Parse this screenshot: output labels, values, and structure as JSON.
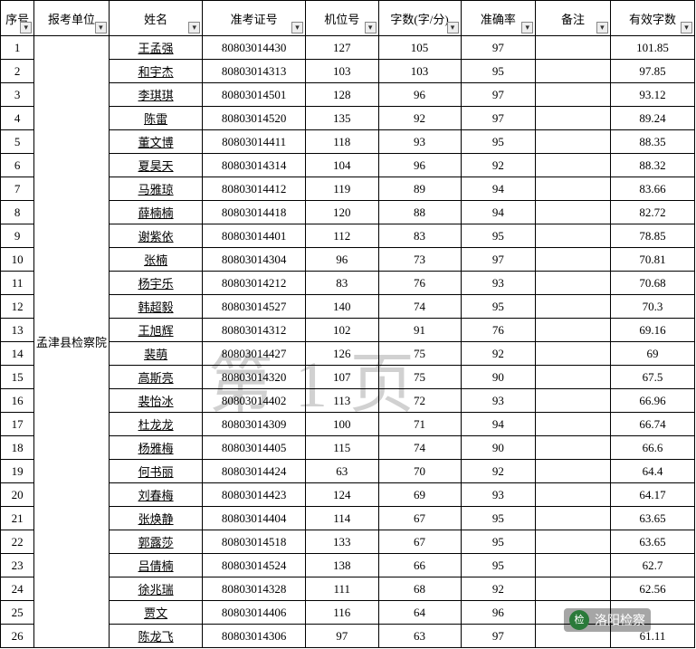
{
  "headers": {
    "seq": "序号",
    "unit": "报考单位",
    "name": "姓名",
    "exam": "准考证号",
    "machine": "机位号",
    "cpm": "字数(字/分)",
    "accuracy": "准确率",
    "note": "备注",
    "effective": "有效字数"
  },
  "unit_name": "孟津县检察院",
  "watermark": "第1页",
  "footer_text": "洛阳检察",
  "footer_logo": "检",
  "rows": [
    {
      "seq": "1",
      "name": "王孟强",
      "exam": "80803014430",
      "machine": "127",
      "cpm": "105",
      "acc": "97",
      "note": "",
      "eff": "101.85"
    },
    {
      "seq": "2",
      "name": "和宇杰",
      "exam": "80803014313",
      "machine": "103",
      "cpm": "103",
      "acc": "95",
      "note": "",
      "eff": "97.85"
    },
    {
      "seq": "3",
      "name": "李琪琪",
      "exam": "80803014501",
      "machine": "128",
      "cpm": "96",
      "acc": "97",
      "note": "",
      "eff": "93.12"
    },
    {
      "seq": "4",
      "name": "陈雷",
      "exam": "80803014520",
      "machine": "135",
      "cpm": "92",
      "acc": "97",
      "note": "",
      "eff": "89.24"
    },
    {
      "seq": "5",
      "name": "董文博",
      "exam": "80803014411",
      "machine": "118",
      "cpm": "93",
      "acc": "95",
      "note": "",
      "eff": "88.35"
    },
    {
      "seq": "6",
      "name": "夏昊天",
      "exam": "80803014314",
      "machine": "104",
      "cpm": "96",
      "acc": "92",
      "note": "",
      "eff": "88.32"
    },
    {
      "seq": "7",
      "name": "马雅琼",
      "exam": "80803014412",
      "machine": "119",
      "cpm": "89",
      "acc": "94",
      "note": "",
      "eff": "83.66"
    },
    {
      "seq": "8",
      "name": "薛楠楠",
      "exam": "80803014418",
      "machine": "120",
      "cpm": "88",
      "acc": "94",
      "note": "",
      "eff": "82.72"
    },
    {
      "seq": "9",
      "name": "谢紫依",
      "exam": "80803014401",
      "machine": "112",
      "cpm": "83",
      "acc": "95",
      "note": "",
      "eff": "78.85"
    },
    {
      "seq": "10",
      "name": "张楠",
      "exam": "80803014304",
      "machine": "96",
      "cpm": "73",
      "acc": "97",
      "note": "",
      "eff": "70.81"
    },
    {
      "seq": "11",
      "name": "杨宇乐",
      "exam": "80803014212",
      "machine": "83",
      "cpm": "76",
      "acc": "93",
      "note": "",
      "eff": "70.68"
    },
    {
      "seq": "12",
      "name": "韩超毅",
      "exam": "80803014527",
      "machine": "140",
      "cpm": "74",
      "acc": "95",
      "note": "",
      "eff": "70.3"
    },
    {
      "seq": "13",
      "name": "王旭辉",
      "exam": "80803014312",
      "machine": "102",
      "cpm": "91",
      "acc": "76",
      "note": "",
      "eff": "69.16"
    },
    {
      "seq": "14",
      "name": "裴萌",
      "exam": "80803014427",
      "machine": "126",
      "cpm": "75",
      "acc": "92",
      "note": "",
      "eff": "69"
    },
    {
      "seq": "15",
      "name": "高斯亮",
      "exam": "80803014320",
      "machine": "107",
      "cpm": "75",
      "acc": "90",
      "note": "",
      "eff": "67.5"
    },
    {
      "seq": "16",
      "name": "裴怡冰",
      "exam": "80803014402",
      "machine": "113",
      "cpm": "72",
      "acc": "93",
      "note": "",
      "eff": "66.96"
    },
    {
      "seq": "17",
      "name": "杜龙龙",
      "exam": "80803014309",
      "machine": "100",
      "cpm": "71",
      "acc": "94",
      "note": "",
      "eff": "66.74"
    },
    {
      "seq": "18",
      "name": "杨雅梅",
      "exam": "80803014405",
      "machine": "115",
      "cpm": "74",
      "acc": "90",
      "note": "",
      "eff": "66.6"
    },
    {
      "seq": "19",
      "name": "何书丽",
      "exam": "80803014424",
      "machine": "63",
      "cpm": "70",
      "acc": "92",
      "note": "",
      "eff": "64.4"
    },
    {
      "seq": "20",
      "name": "刘春梅",
      "exam": "80803014423",
      "machine": "124",
      "cpm": "69",
      "acc": "93",
      "note": "",
      "eff": "64.17"
    },
    {
      "seq": "21",
      "name": "张焕静",
      "exam": "80803014404",
      "machine": "114",
      "cpm": "67",
      "acc": "95",
      "note": "",
      "eff": "63.65"
    },
    {
      "seq": "22",
      "name": "郭露莎",
      "exam": "80803014518",
      "machine": "133",
      "cpm": "67",
      "acc": "95",
      "note": "",
      "eff": "63.65"
    },
    {
      "seq": "23",
      "name": "吕倩楠",
      "exam": "80803014524",
      "machine": "138",
      "cpm": "66",
      "acc": "95",
      "note": "",
      "eff": "62.7"
    },
    {
      "seq": "24",
      "name": "徐兆瑞",
      "exam": "80803014328",
      "machine": "111",
      "cpm": "68",
      "acc": "92",
      "note": "",
      "eff": "62.56"
    },
    {
      "seq": "25",
      "name": "贾文",
      "exam": "80803014406",
      "machine": "116",
      "cpm": "64",
      "acc": "96",
      "note": "",
      "eff": ""
    },
    {
      "seq": "26",
      "name": "陈龙飞",
      "exam": "80803014306",
      "machine": "97",
      "cpm": "63",
      "acc": "97",
      "note": "",
      "eff": "61.11"
    }
  ]
}
